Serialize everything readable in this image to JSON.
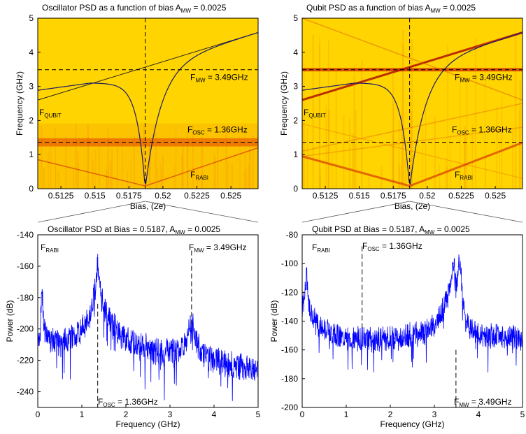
{
  "chart_data": [
    {
      "id": "top_left",
      "type": "heatmap",
      "title": "Oscillator PSD as a function of bias",
      "title_right": "A",
      "title_right_sub": "MW",
      "title_right_value": " = 0.0025",
      "xlabel": "Bias, (2e)",
      "ylabel": "Frequency (GHz)",
      "xlim": [
        0.5108,
        0.527
      ],
      "ylim": [
        0,
        5
      ],
      "xticks": [
        "0.5125",
        "0.515",
        "0.5175",
        "0.52",
        "0.5225",
        "0.525"
      ],
      "xtick_values": [
        0.5125,
        0.515,
        0.5175,
        0.52,
        0.5225,
        0.525
      ],
      "yticks": [
        0,
        1,
        2,
        3,
        4,
        5
      ],
      "background_color": "#ffd400",
      "bias_marker": 0.5187,
      "f_mw": 3.49,
      "f_osc": 1.36,
      "annotations": [
        {
          "main": "F",
          "sub": "MW",
          "rest": " = 3.49GHz"
        },
        {
          "main": "F",
          "sub": "QUBIT",
          "rest": ""
        },
        {
          "main": "F",
          "sub": "OSC",
          "rest": " = 1.36GHz"
        },
        {
          "main": "F",
          "sub": "RABI",
          "rest": ""
        }
      ]
    },
    {
      "id": "top_right",
      "type": "heatmap",
      "title": "Qubit PSD as a function of bias",
      "title_right": "A",
      "title_right_sub": "MW",
      "title_right_value": " = 0.0025",
      "xlabel": "Bias, (2e)",
      "ylabel": "Frequency (GHz)",
      "xlim": [
        0.5108,
        0.527
      ],
      "ylim": [
        0,
        5
      ],
      "xticks": [
        "0.5125",
        "0.515",
        "0.5175",
        "0.52",
        "0.5225",
        "0.525"
      ],
      "xtick_values": [
        0.5125,
        0.515,
        0.5175,
        0.52,
        0.5225,
        0.525
      ],
      "yticks": [
        0,
        1,
        2,
        3,
        4,
        5
      ],
      "background_color": "#ffd400",
      "bias_marker": 0.5187,
      "f_mw": 3.49,
      "f_osc": 1.36,
      "annotations": [
        {
          "main": "F",
          "sub": "MW",
          "rest": " = 3.49GHz"
        },
        {
          "main": "F",
          "sub": "QUBIT",
          "rest": ""
        },
        {
          "main": "F",
          "sub": "OSC",
          "rest": " = 1.36GHz"
        },
        {
          "main": "F",
          "sub": "RABI",
          "rest": ""
        }
      ]
    },
    {
      "id": "bottom_left",
      "type": "line",
      "title": "Oscillator PSD at Bias = 0.5187,",
      "title_right": "A",
      "title_right_sub": "MW",
      "title_right_value": " = 0.0025",
      "xlabel": "Frequency (GHz)",
      "ylabel": "Power (dB)",
      "xlim": [
        0,
        5
      ],
      "ylim": [
        -250,
        -140
      ],
      "xticks": [
        0,
        1,
        2,
        3,
        4,
        5
      ],
      "yticks": [
        -140,
        -160,
        -180,
        -200,
        -220,
        -240
      ],
      "line_color": "#0000ff",
      "f_mw": 3.49,
      "f_osc": 1.36,
      "annotations": [
        {
          "main": "F",
          "sub": "RABI",
          "rest": ""
        },
        {
          "main": "F",
          "sub": "MW",
          "rest": " = 3.49GHz"
        },
        {
          "main": "F",
          "sub": "OSC",
          "rest": " = 1.36GHz"
        }
      ],
      "series": [
        {
          "x": [
            0.0,
            0.05,
            0.08,
            0.1,
            0.12,
            0.15,
            0.2,
            0.3,
            0.4,
            0.5,
            0.6,
            0.7,
            0.8,
            0.9,
            1.0,
            1.1,
            1.2,
            1.28,
            1.33,
            1.36,
            1.39,
            1.45,
            1.55,
            1.7,
            1.9,
            2.1,
            2.3,
            2.5,
            2.7,
            2.9,
            3.1,
            3.3,
            3.42,
            3.49,
            3.56,
            3.7,
            3.9,
            4.1,
            4.3,
            4.5,
            4.7,
            4.9,
            5.0
          ],
          "y": [
            -210,
            -203,
            -185,
            -175,
            -190,
            -200,
            -205,
            -208,
            -209,
            -208,
            -207,
            -206,
            -205,
            -203,
            -200,
            -196,
            -190,
            -178,
            -168,
            -155,
            -168,
            -180,
            -190,
            -198,
            -205,
            -208,
            -210,
            -212,
            -214,
            -215,
            -214,
            -212,
            -200,
            -195,
            -205,
            -215,
            -218,
            -220,
            -222,
            -223,
            -224,
            -226,
            -225
          ]
        }
      ]
    },
    {
      "id": "bottom_right",
      "type": "line",
      "title": "Qubit PSD at Bias = 0.5187,",
      "title_right": "A",
      "title_right_sub": "MW",
      "title_right_value": " = 0.0025",
      "xlabel": "Frequency (GHz)",
      "ylabel": "Power (dB)",
      "xlim": [
        0,
        5
      ],
      "ylim": [
        -200,
        -80
      ],
      "xticks": [
        0,
        1,
        2,
        3,
        4,
        5
      ],
      "yticks": [
        -80,
        -100,
        -120,
        -140,
        -160,
        -180,
        -200
      ],
      "line_color": "#0000ff",
      "f_mw": 3.49,
      "f_osc": 1.36,
      "annotations": [
        {
          "main": "F",
          "sub": "RABI",
          "rest": ""
        },
        {
          "main": "F",
          "sub": "OSC",
          "rest": " = 1.36GHz"
        },
        {
          "main": "F",
          "sub": "MW",
          "rest": " = 3.49GHz"
        }
      ],
      "series": [
        {
          "x": [
            0.0,
            0.05,
            0.08,
            0.1,
            0.12,
            0.15,
            0.2,
            0.3,
            0.4,
            0.5,
            0.7,
            0.9,
            1.1,
            1.3,
            1.5,
            1.7,
            1.9,
            2.1,
            2.3,
            2.5,
            2.7,
            2.9,
            3.0,
            3.1,
            3.2,
            3.3,
            3.38,
            3.44,
            3.49,
            3.55,
            3.6,
            3.65,
            3.72,
            3.8,
            3.9,
            4.0,
            4.2,
            4.4,
            4.6,
            4.8,
            5.0
          ],
          "y": [
            -130,
            -125,
            -115,
            -108,
            -118,
            -128,
            -135,
            -140,
            -143,
            -146,
            -149,
            -151,
            -152,
            -153,
            -153,
            -153,
            -152,
            -152,
            -151,
            -150,
            -148,
            -146,
            -142,
            -138,
            -132,
            -123,
            -112,
            -100,
            -118,
            -102,
            -105,
            -128,
            -140,
            -145,
            -147,
            -148,
            -150,
            -150,
            -151,
            -151,
            -152
          ]
        }
      ]
    }
  ]
}
